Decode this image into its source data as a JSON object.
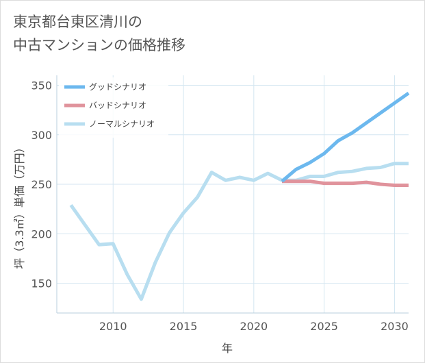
{
  "chart_data": {
    "type": "line",
    "title_line1": "東京都台東区清川の",
    "title_line2": "中古マンションの価格推移",
    "xlabel": "年",
    "ylabel": "坪（3.3㎡）単価（万円）",
    "xlim": [
      2006,
      2031
    ],
    "ylim": [
      120,
      360
    ],
    "xticks": [
      2010,
      2015,
      2020,
      2025,
      2030
    ],
    "yticks": [
      150,
      200,
      250,
      300,
      350
    ],
    "legend_position": "top-left",
    "series": [
      {
        "name": "グッドシナリオ",
        "color": "#6cb8ee",
        "x": [
          2022,
          2023,
          2024,
          2025,
          2026,
          2027,
          2028,
          2029,
          2030,
          2031
        ],
        "values": [
          253,
          265,
          272,
          281,
          294,
          302,
          312,
          322,
          332,
          342
        ]
      },
      {
        "name": "バッドシナリオ",
        "color": "#e0939c",
        "x": [
          2022,
          2023,
          2024,
          2025,
          2026,
          2027,
          2028,
          2029,
          2030,
          2031
        ],
        "values": [
          253,
          253,
          253,
          251,
          251,
          251,
          252,
          250,
          249,
          249
        ]
      },
      {
        "name": "ノーマルシナリオ",
        "color": "#b8def0",
        "x": [
          2007,
          2008,
          2009,
          2010,
          2011,
          2012,
          2013,
          2014,
          2015,
          2016,
          2017,
          2018,
          2019,
          2020,
          2021,
          2022,
          2023,
          2024,
          2025,
          2026,
          2027,
          2028,
          2029,
          2030,
          2031
        ],
        "values": [
          229,
          209,
          189,
          190,
          159,
          134,
          171,
          201,
          221,
          237,
          262,
          254,
          257,
          254,
          261,
          254,
          254,
          258,
          258,
          262,
          263,
          266,
          267,
          271,
          271
        ]
      }
    ]
  }
}
